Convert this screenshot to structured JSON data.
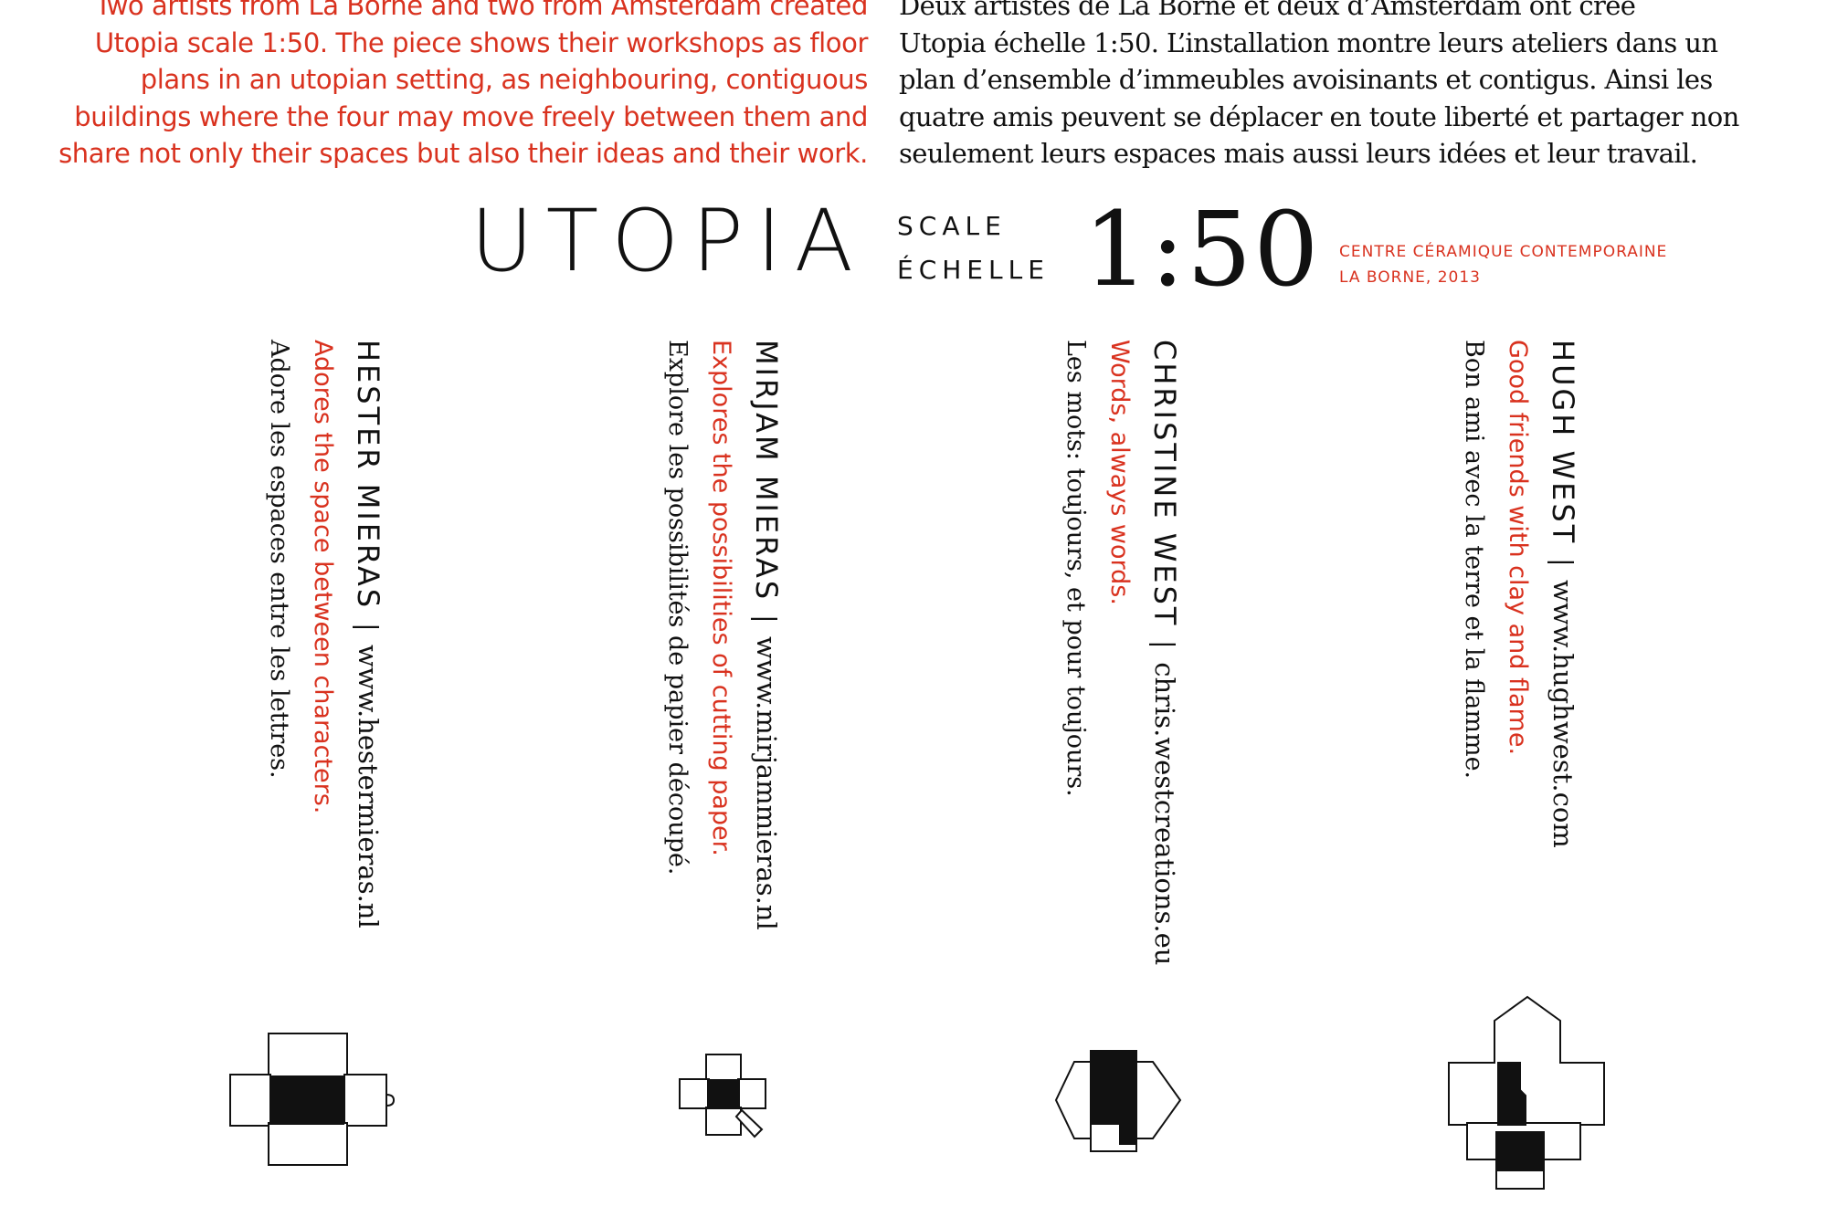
{
  "intro": {
    "english_lines": [
      "Two artists from La Borne and two from Amsterdam created",
      "Utopia scale 1:50. The piece shows their workshops as floor",
      "plans in an utopian setting, as neighbouring, contiguous",
      "buildings where the four may move freely between them and",
      "share not only their spaces but also their ideas and their work."
    ],
    "french_lines": [
      "Deux artistes de La Borne et deux d’Amsterdam ont créé",
      "Utopia échelle 1:50. L’installation montre leurs ateliers dans un",
      "plan d’ensemble d’immeubles avoisinants et contigus. Ainsi les",
      "quatre amis peuvent se déplacer en toute liberté et partager non",
      "seulement leurs espaces mais aussi leurs idées et leur travail."
    ]
  },
  "header": {
    "title": "UTOPIA",
    "scale_label": "SCALE",
    "echelle_label": "ÉCHELLE",
    "ratio": "1:50",
    "venue_line1": "CENTRE CÉRAMIQUE CONTEMPORAINE",
    "venue_line2": "LA BORNE, 2013"
  },
  "artists": [
    {
      "name": "HESTER MIERAS",
      "separator": "|",
      "url": "www.hestermieras.nl",
      "tagline_en": "Adores the space between characters.",
      "tagline_fr": "Adore les espaces entre les lettres.",
      "plan_icon": "floor-plan-hester-icon"
    },
    {
      "name": "MIRJAM MIERAS",
      "separator": "|",
      "url": "www.mirjammieras.nl",
      "tagline_en": "Explores the possibilities of cutting paper.",
      "tagline_fr": "Explore les possibilités de papier découpé.",
      "plan_icon": "floor-plan-mirjam-icon"
    },
    {
      "name": "CHRISTINE WEST",
      "separator": "|",
      "url": "chris.westcreations.eu",
      "tagline_en": "Words, always words.",
      "tagline_fr": "Les mots: toujours, et pour toujours.",
      "plan_icon": "floor-plan-christine-icon"
    },
    {
      "name": "HUGH WEST",
      "separator": "|",
      "url": "www.hughwest.com",
      "tagline_en": "Good friends with clay and flame.",
      "tagline_fr": "Bon ami avec la terre et la flamme.",
      "plan_icon": "floor-plan-hugh-icon"
    }
  ],
  "colors": {
    "accent_red": "#d9321f",
    "text_black": "#111111",
    "background": "#ffffff"
  }
}
